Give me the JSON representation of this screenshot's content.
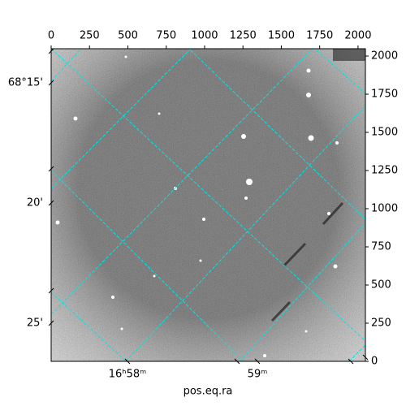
{
  "chart_data": {
    "type": "image",
    "xlabel": "pos.eq.ra",
    "xlim": [
      0,
      2048
    ],
    "xticks": [
      0,
      250,
      500,
      750,
      1000,
      1250,
      1500,
      1750,
      2000
    ],
    "ylim": [
      0,
      2048
    ],
    "yticks": [
      0,
      250,
      500,
      750,
      1000,
      1250,
      1500,
      1750,
      2000
    ],
    "ra_ticks": [
      "16ʰ58ᵐ",
      "59ᵐ"
    ],
    "dec_ticks": [
      "68°15'",
      "20'",
      "25'"
    ],
    "grid": true,
    "grid_color": "#00e5e5"
  }
}
